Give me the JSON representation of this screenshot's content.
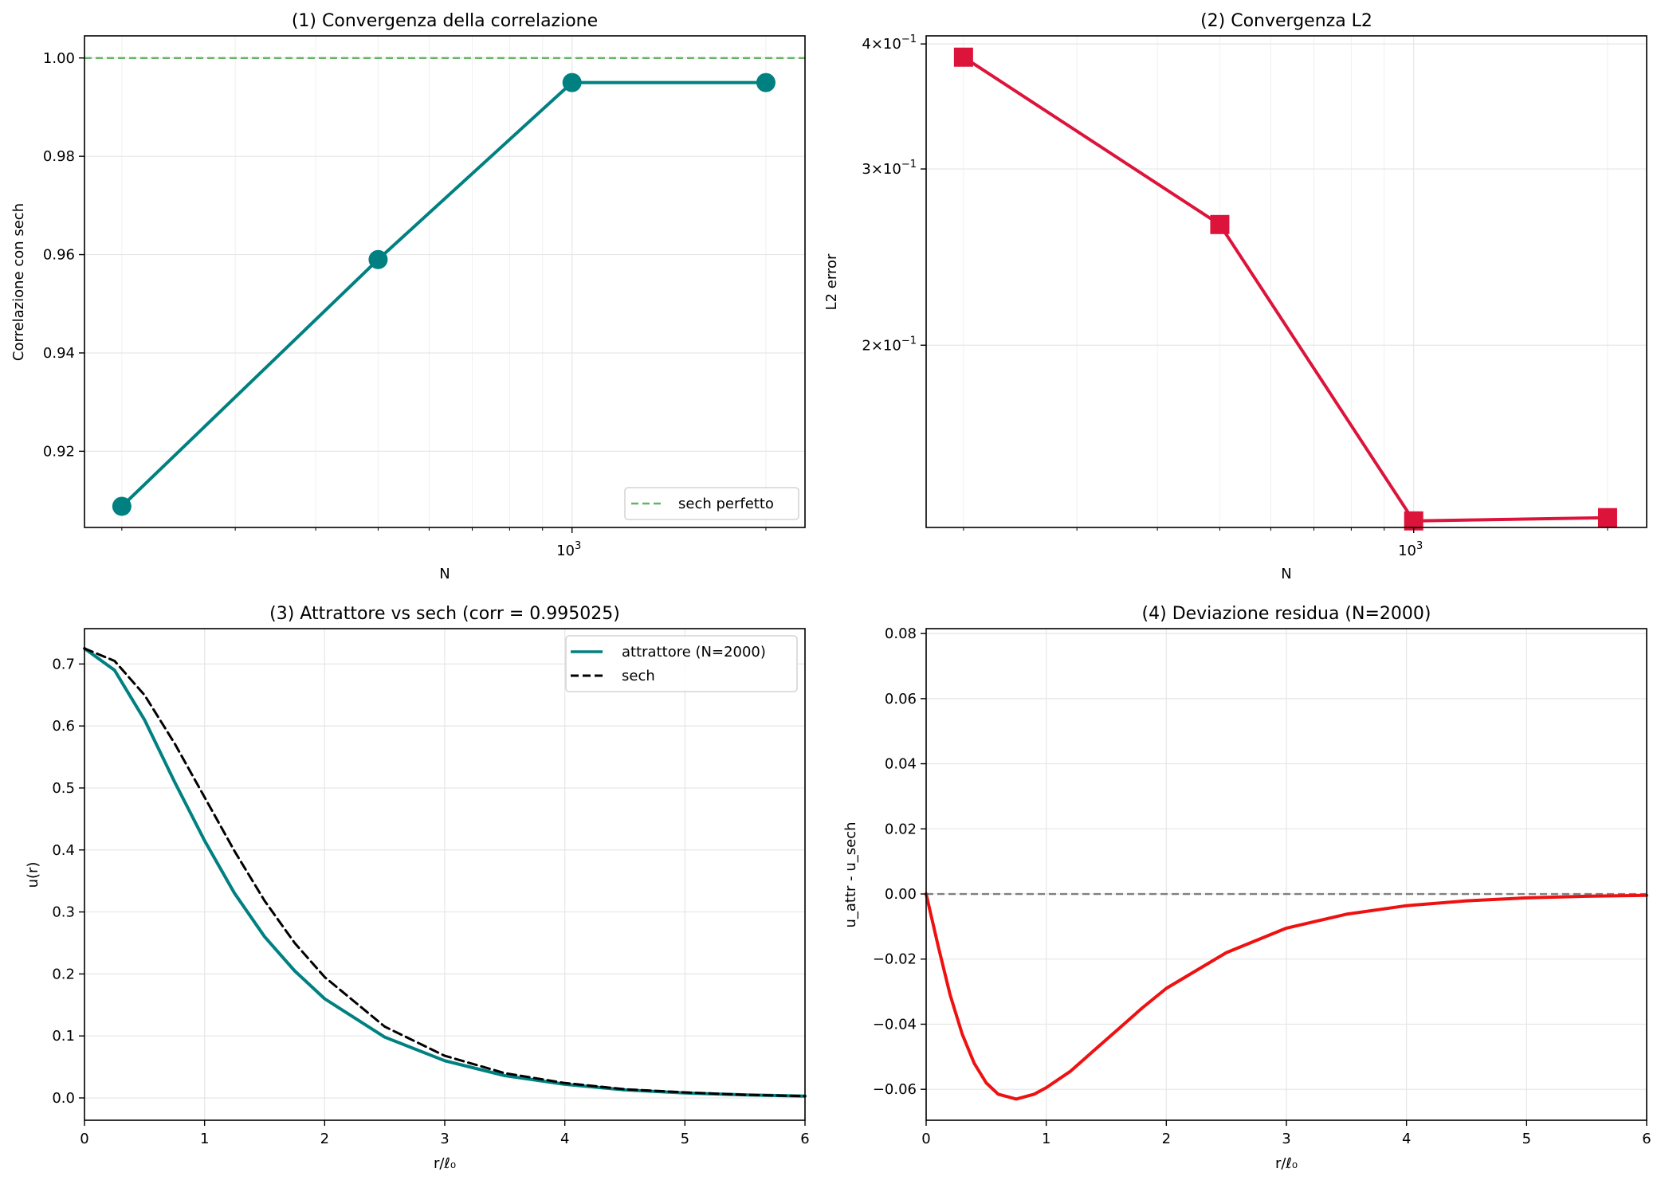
{
  "chart_data": [
    {
      "type": "line",
      "title": "(1) Convergenza della correlazione",
      "xlabel": "N",
      "ylabel": "Correlazione con sech",
      "xscale": "log",
      "xlim": [
        175,
        2300
      ],
      "ylim": [
        0.9045,
        1.0045
      ],
      "x_major_ticks": [
        {
          "value": 1000,
          "label_base": "10",
          "label_exp": "3"
        }
      ],
      "x_minor_ticks": [
        200,
        300,
        400,
        500,
        600,
        700,
        800,
        900,
        2000
      ],
      "y_ticks": [
        0.92,
        0.94,
        0.96,
        0.98,
        1.0
      ],
      "y_tick_labels": [
        "0.92",
        "0.94",
        "0.96",
        "0.98",
        "1.00"
      ],
      "grid": true,
      "series": [
        {
          "name": "",
          "color": "#008080",
          "marker": "circle",
          "x": [
            200,
            500,
            1000,
            2000
          ],
          "y": [
            0.9088,
            0.959,
            0.995,
            0.995
          ]
        }
      ],
      "hlines": [
        {
          "name": "sech perfetto",
          "y": 1.0,
          "color": "#66b366",
          "dash": "dashed"
        }
      ],
      "legend": {
        "position": "lower-right",
        "entries": [
          "sech perfetto"
        ]
      }
    },
    {
      "type": "line",
      "title": "(2) Convergenza L2",
      "xlabel": "N",
      "ylabel": "L2 error",
      "xscale": "log",
      "yscale": "log",
      "xlim": [
        175,
        2300
      ],
      "ylim": [
        0.1315,
        0.4075
      ],
      "x_major_ticks": [
        {
          "value": 1000,
          "label_base": "10",
          "label_exp": "3"
        }
      ],
      "x_minor_ticks": [
        200,
        300,
        400,
        500,
        600,
        700,
        800,
        900,
        2000
      ],
      "y_ticks": [
        0.2,
        0.3,
        0.4
      ],
      "y_tick_labels": [
        {
          "mant": "2",
          "base": "10",
          "exp": "−1"
        },
        {
          "mant": "3",
          "base": "10",
          "exp": "−1"
        },
        {
          "mant": "4",
          "base": "10",
          "exp": "−1"
        }
      ],
      "grid": true,
      "series": [
        {
          "name": "",
          "color": "#dc143c",
          "marker": "square",
          "x": [
            200,
            500,
            1000,
            2000
          ],
          "y": [
            0.388,
            0.264,
            0.1335,
            0.1345
          ]
        }
      ]
    },
    {
      "type": "line",
      "title": "(3) Attrattore vs sech (corr = 0.995025)",
      "xlabel": "r/ℓ₀",
      "ylabel": "u(r)",
      "xlim": [
        0,
        6
      ],
      "ylim": [
        -0.036,
        0.757
      ],
      "x_ticks": [
        0,
        1,
        2,
        3,
        4,
        5,
        6
      ],
      "x_tick_labels": [
        "0",
        "1",
        "2",
        "3",
        "4",
        "5",
        "6"
      ],
      "y_ticks": [
        0.0,
        0.1,
        0.2,
        0.3,
        0.4,
        0.5,
        0.6,
        0.7
      ],
      "y_tick_labels": [
        "0.0",
        "0.1",
        "0.2",
        "0.3",
        "0.4",
        "0.5",
        "0.6",
        "0.7"
      ],
      "grid": true,
      "series": [
        {
          "name": "attrattore (N=2000)",
          "color": "#008080",
          "dash": "solid",
          "x": [
            0,
            0.25,
            0.5,
            0.75,
            1.0,
            1.25,
            1.5,
            1.75,
            2.0,
            2.5,
            3.0,
            3.5,
            4.0,
            4.5,
            5.0,
            5.5,
            6.0
          ],
          "y": [
            0.725,
            0.69,
            0.61,
            0.51,
            0.415,
            0.33,
            0.26,
            0.205,
            0.16,
            0.098,
            0.06,
            0.036,
            0.022,
            0.013,
            0.008,
            0.005,
            0.003
          ]
        },
        {
          "name": "sech",
          "color": "#000000",
          "dash": "dashed",
          "x": [
            0,
            0.25,
            0.5,
            0.75,
            1.0,
            1.25,
            1.5,
            1.75,
            2.0,
            2.5,
            3.0,
            3.5,
            4.0,
            4.5,
            5.0,
            5.5,
            6.0
          ],
          "y": [
            0.725,
            0.705,
            0.65,
            0.572,
            0.485,
            0.398,
            0.318,
            0.25,
            0.195,
            0.115,
            0.068,
            0.04,
            0.024,
            0.014,
            0.009,
            0.005,
            0.003
          ]
        }
      ],
      "legend": {
        "position": "top-right",
        "entries": [
          "attrattore (N=2000)",
          "sech"
        ]
      }
    },
    {
      "type": "line",
      "title": "(4) Deviazione residua (N=2000)",
      "xlabel": "r/ℓ₀",
      "ylabel": "u_attr - u_sech",
      "xlim": [
        0,
        6
      ],
      "ylim": [
        -0.0695,
        0.0815
      ],
      "x_ticks": [
        0,
        1,
        2,
        3,
        4,
        5,
        6
      ],
      "x_tick_labels": [
        "0",
        "1",
        "2",
        "3",
        "4",
        "5",
        "6"
      ],
      "y_ticks": [
        -0.06,
        -0.04,
        -0.02,
        0.0,
        0.02,
        0.04,
        0.06,
        0.08
      ],
      "y_tick_labels": [
        "−0.06",
        "−0.04",
        "−0.02",
        "0.00",
        "0.02",
        "0.04",
        "0.06",
        "0.08"
      ],
      "grid": true,
      "series": [
        {
          "name": "",
          "color": "#ee1111",
          "dash": "solid",
          "x": [
            0,
            0.1,
            0.2,
            0.3,
            0.4,
            0.5,
            0.6,
            0.75,
            0.9,
            1.0,
            1.2,
            1.4,
            1.6,
            1.8,
            2.0,
            2.5,
            3.0,
            3.5,
            4.0,
            4.5,
            5.0,
            5.5,
            6.0
          ],
          "y": [
            0.0,
            -0.016,
            -0.031,
            -0.043,
            -0.052,
            -0.058,
            -0.0615,
            -0.063,
            -0.0615,
            -0.0595,
            -0.0545,
            -0.048,
            -0.0415,
            -0.035,
            -0.029,
            -0.018,
            -0.0105,
            -0.0062,
            -0.0036,
            -0.0021,
            -0.0012,
            -0.0007,
            -0.0004
          ]
        }
      ],
      "hlines": [
        {
          "name": "",
          "y": 0.0,
          "color": "#808080",
          "dash": "dashed"
        }
      ]
    }
  ]
}
